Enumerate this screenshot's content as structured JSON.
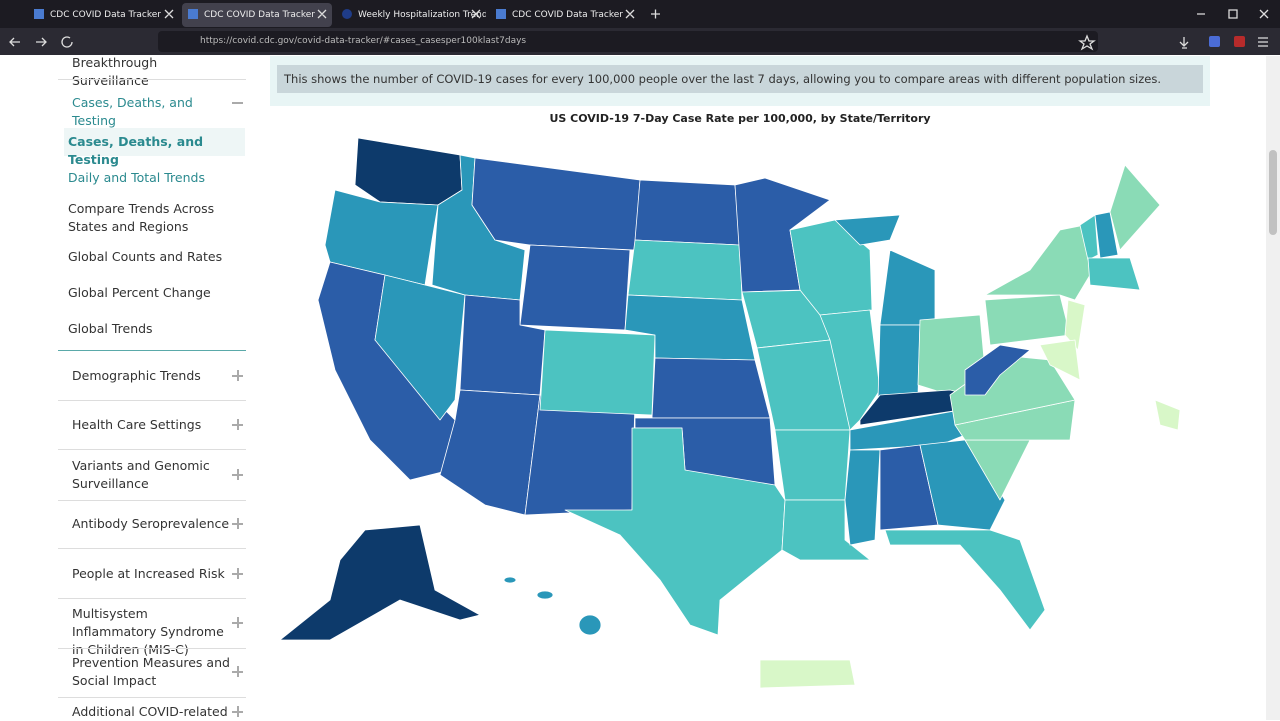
{
  "browser": {
    "tabs": [
      "CDC COVID Data Tracker",
      "CDC COVID Data Tracker",
      "Weekly Hospitalization Trends",
      "CDC COVID Data Tracker"
    ],
    "url": "https://covid.cdc.gov/covid-data-tracker/#cases_casesper100klast7days"
  },
  "sidebar": {
    "top_item": "Breakthrough Surveillance",
    "open_section": "Cases, Deaths, and Testing",
    "sub_items": [
      "Cases, Deaths, and Testing",
      "Daily and Total Trends",
      "Compare Trends Across States and Regions",
      "Global Counts and Rates",
      "Global Percent Change",
      "Global Trends"
    ],
    "sections": [
      "Demographic Trends",
      "Health Care Settings",
      "Variants and Genomic Surveillance",
      "Antibody Seroprevalence",
      "People at Increased Risk",
      "Multisystem Inflammatory Syndrome in Children (MIS-C)",
      "Prevention Measures and Social Impact",
      "Additional COVID-related"
    ]
  },
  "main": {
    "notice": "This shows the number of COVID-19 cases for every 100,000 people over the last 7 days, allowing you to compare areas with different population sizes.",
    "map_title": "US COVID-19 7-Day Case Rate per 100,000, by State/Territory"
  }
}
